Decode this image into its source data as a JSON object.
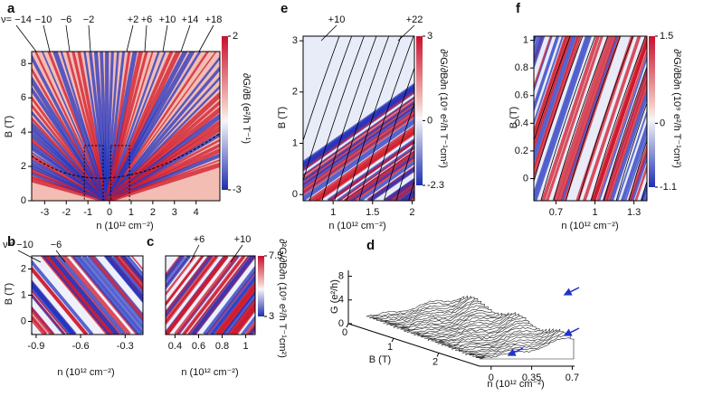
{
  "chart_data": [
    {
      "type": "heatmap",
      "panel_label": "a",
      "xlabel": "n (10¹² cm⁻²)",
      "ylabel": "B (T)",
      "xlim": [
        -3.6,
        5.1
      ],
      "ylim": [
        0,
        8.7
      ],
      "xticks": [
        -3,
        -2,
        -1,
        0,
        1,
        2,
        3,
        4
      ],
      "yticks": [
        0,
        2,
        4,
        6,
        8
      ],
      "colorbar": {
        "label": "∂G/∂B (e²/h T⁻¹)",
        "lim": [
          -3,
          2
        ],
        "ticks": [
          2,
          -3
        ]
      },
      "annotations": [
        "ν= −14",
        "−10",
        "−6",
        "−2",
        "+2",
        "+6",
        "+10",
        "+14",
        "+18"
      ]
    },
    {
      "type": "heatmap",
      "panel_label": "b",
      "xlabel": "n (10¹² cm⁻²)",
      "ylabel": "B (T)",
      "xlim": [
        -0.93,
        -0.18
      ],
      "ylim": [
        -0.5,
        2.5
      ],
      "xticks": [
        -0.9,
        -0.6,
        -0.3
      ],
      "yticks": [
        0,
        1,
        2
      ],
      "annotations": [
        "ν= −10",
        "−6"
      ]
    },
    {
      "type": "heatmap",
      "panel_label": "c",
      "xlabel": "n (10¹² cm⁻²)",
      "xlim": [
        0.32,
        1.08
      ],
      "ylim": [
        -0.5,
        2.5
      ],
      "xticks": [
        0.4,
        0.6,
        0.8,
        1
      ],
      "colorbar": {
        "label": "∂²G/∂B∂n (10⁹ e²/h T⁻¹cm²)",
        "lim": [
          3,
          7.5
        ],
        "ticks": [
          7.5,
          3
        ]
      },
      "annotations": [
        "+6",
        "+10"
      ]
    },
    {
      "type": "heatmap",
      "panel_label": "e",
      "xlabel": "n (10¹² cm⁻²)",
      "ylabel": "B (T)",
      "xlim": [
        0.62,
        2.03
      ],
      "ylim": [
        -0.12,
        3.09
      ],
      "xticks": [
        1,
        1.5,
        2
      ],
      "yticks": [
        0,
        1,
        2,
        3
      ],
      "colorbar": {
        "label": "∂²G/∂B∂n (10⁹ e²/h T⁻¹cm²)",
        "lim": [
          -2.3,
          3
        ],
        "ticks": [
          3,
          0,
          -2.3
        ]
      },
      "annotations": [
        "+10",
        "+22"
      ]
    },
    {
      "type": "heatmap",
      "panel_label": "f",
      "xlabel": "n (10¹² cm⁻²)",
      "ylabel": "B (T)",
      "xlim": [
        0.53,
        1.4
      ],
      "ylim": [
        -0.16,
        1.03
      ],
      "xticks": [
        0.7,
        1,
        1.3
      ],
      "yticks": [
        0,
        0.2,
        0.4,
        0.6,
        0.8,
        1
      ],
      "colorbar": {
        "label": "∂²G/∂B∂n (10⁹ e²/h T⁻¹cm²)",
        "lim": [
          -1.1,
          1.5
        ],
        "ticks": [
          1.5,
          0,
          -1.1
        ]
      }
    },
    {
      "type": "waterfall3d",
      "panel_label": "d",
      "zlabel": "G (e²/h)",
      "ylabel": "B (T)",
      "xlabel": "n (10¹² cm⁻²)",
      "zlim": [
        0,
        9
      ],
      "zticks": [
        0,
        4,
        8
      ],
      "ylim": [
        0,
        2.9
      ],
      "yticks": [
        0,
        1,
        2
      ],
      "xlim": [
        -0.1,
        0.72
      ],
      "xticks": [
        0,
        0.35,
        0.7
      ]
    }
  ]
}
